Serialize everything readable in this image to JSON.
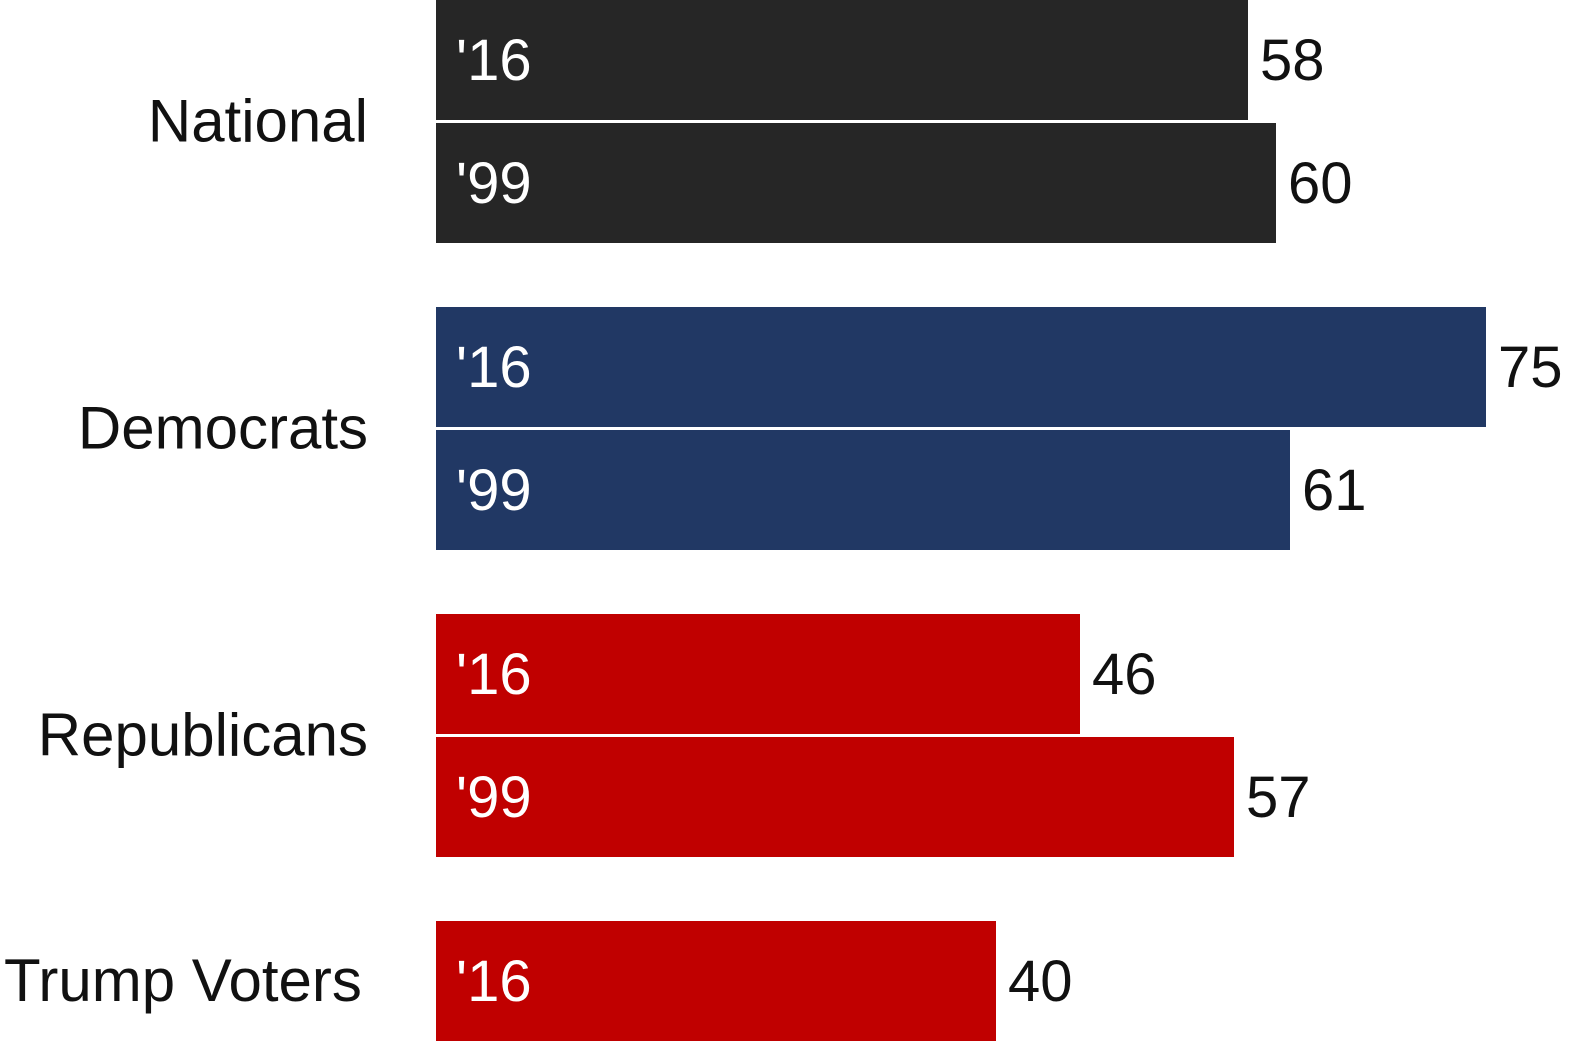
{
  "chart_data": {
    "type": "bar",
    "orientation": "horizontal",
    "groups": [
      {
        "label": "National",
        "color": "#262626",
        "bars": [
          {
            "year_label": "'16",
            "value": 58,
            "value_label": "58"
          },
          {
            "year_label": "'99",
            "value": 60,
            "value_label": "60"
          }
        ]
      },
      {
        "label": "Democrats",
        "color": "#213864",
        "bars": [
          {
            "year_label": "'16",
            "value": 75,
            "value_label": "75"
          },
          {
            "year_label": "'99",
            "value": 61,
            "value_label": "61"
          }
        ]
      },
      {
        "label": "Republicans",
        "color": "#C00000",
        "bars": [
          {
            "year_label": "'16",
            "value": 46,
            "value_label": "46"
          },
          {
            "year_label": "'99",
            "value": 57,
            "value_label": "57"
          }
        ]
      },
      {
        "label": "Trump Voters",
        "color": "#C00000",
        "bars": [
          {
            "year_label": "'16",
            "value": 40,
            "value_label": "40"
          }
        ]
      }
    ],
    "xlim": [
      0,
      75
    ],
    "grid": false,
    "legend": "none",
    "title": "",
    "xlabel": "",
    "ylabel": ""
  }
}
